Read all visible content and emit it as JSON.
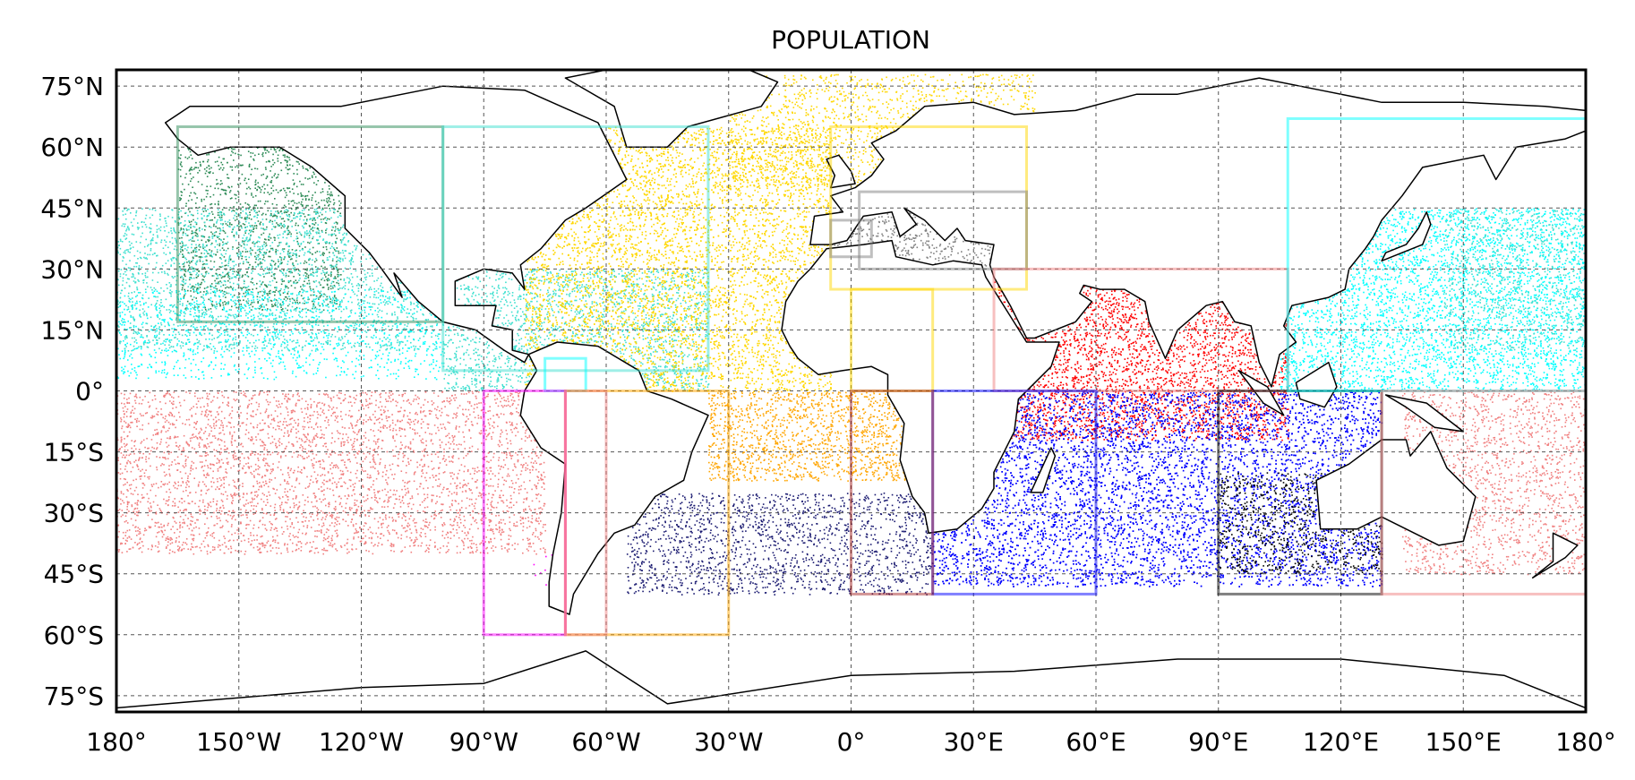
{
  "title": "POPULATION",
  "x_ticks": [
    {
      "lon": -180,
      "label": "180°"
    },
    {
      "lon": -150,
      "label": "150°W"
    },
    {
      "lon": -120,
      "label": "120°W"
    },
    {
      "lon": -90,
      "label": "90°W"
    },
    {
      "lon": -60,
      "label": "60°W"
    },
    {
      "lon": -30,
      "label": "30°W"
    },
    {
      "lon": 0,
      "label": "0°"
    },
    {
      "lon": 30,
      "label": "30°E"
    },
    {
      "lon": 60,
      "label": "60°E"
    },
    {
      "lon": 90,
      "label": "90°E"
    },
    {
      "lon": 120,
      "label": "120°E"
    },
    {
      "lon": 150,
      "label": "150°E"
    },
    {
      "lon": 180,
      "label": "180°"
    }
  ],
  "y_ticks": [
    {
      "lat": 75,
      "label": "75°N"
    },
    {
      "lat": 60,
      "label": "60°N"
    },
    {
      "lat": 45,
      "label": "45°N"
    },
    {
      "lat": 30,
      "label": "30°N"
    },
    {
      "lat": 15,
      "label": "15°N"
    },
    {
      "lat": 0,
      "label": "0°"
    },
    {
      "lat": -15,
      "label": "15°S"
    },
    {
      "lat": -30,
      "label": "30°S"
    },
    {
      "lat": -45,
      "label": "45°S"
    },
    {
      "lat": -60,
      "label": "60°S"
    },
    {
      "lat": -75,
      "label": "75°S"
    }
  ],
  "extent": {
    "lon": [
      -180,
      180
    ],
    "lat": [
      -79,
      79
    ]
  },
  "grid": true,
  "populations": [
    {
      "color": "#2e8b57",
      "lon": [
        -165,
        -125
      ],
      "lat": [
        20,
        60
      ],
      "density": 1.0
    },
    {
      "color": "#40e0d0",
      "lon": [
        -180,
        -100
      ],
      "lat": [
        10,
        45
      ],
      "density": 1.0
    },
    {
      "color": "#00ffff",
      "lon": [
        -180,
        -100
      ],
      "lat": [
        3,
        25
      ],
      "density": 0.6
    },
    {
      "color": "#40e0d0",
      "lon": [
        -100,
        -35
      ],
      "lat": [
        0,
        30
      ],
      "density": 1.2
    },
    {
      "color": "#ffd700",
      "lon": [
        -80,
        -5
      ],
      "lat": [
        0,
        65
      ],
      "density": 1.6
    },
    {
      "color": "#ffd700",
      "lon": [
        -30,
        45
      ],
      "lat": [
        50,
        78
      ],
      "density": 0.8
    },
    {
      "color": "#ffa500",
      "lon": [
        -35,
        15
      ],
      "lat": [
        -22,
        0
      ],
      "density": 1.4
    },
    {
      "color": "#808080",
      "lon": [
        -5,
        40
      ],
      "lat": [
        30,
        45
      ],
      "density": 1.0
    },
    {
      "color": "#f08080",
      "lon": [
        -180,
        -75
      ],
      "lat": [
        -40,
        0
      ],
      "density": 1.0
    },
    {
      "color": "#f08080",
      "lon": [
        135,
        180
      ],
      "lat": [
        -45,
        0
      ],
      "density": 0.9
    },
    {
      "color": "#ff0000",
      "lon": [
        35,
        107
      ],
      "lat": [
        -12,
        30
      ],
      "density": 1.5
    },
    {
      "color": "#0000ff",
      "lon": [
        20,
        130
      ],
      "lat": [
        -48,
        0
      ],
      "density": 2.2
    },
    {
      "color": "#000000",
      "lon": [
        90,
        130
      ],
      "lat": [
        -45,
        -20
      ],
      "density": 1.0
    },
    {
      "color": "#00ffff",
      "lon": [
        105,
        180
      ],
      "lat": [
        0,
        45
      ],
      "density": 1.3
    },
    {
      "color": "#40e0d0",
      "lon": [
        145,
        180
      ],
      "lat": [
        10,
        45
      ],
      "density": 0.7
    },
    {
      "color": "#191970",
      "lon": [
        -55,
        20
      ],
      "lat": [
        -50,
        -25
      ],
      "density": 1.0
    },
    {
      "color": "#ff00ff",
      "lon": [
        -78,
        -70
      ],
      "lat": [
        -48,
        -40
      ],
      "density": 0.2
    }
  ],
  "boxes": [
    {
      "color": "#2e8b57",
      "lon": [
        -165,
        -100
      ],
      "lat": [
        17,
        65
      ]
    },
    {
      "color": "#40e0d0",
      "lon": [
        -100,
        -35
      ],
      "lat": [
        5,
        65
      ]
    },
    {
      "color": "#00ffff",
      "lon": [
        -75,
        -65
      ],
      "lat": [
        0,
        8
      ]
    },
    {
      "color": "#ffd700",
      "lon": [
        -5,
        43
      ],
      "lat": [
        25,
        65
      ]
    },
    {
      "color": "#808080",
      "lon": [
        2,
        43
      ],
      "lat": [
        30,
        49
      ]
    },
    {
      "color": "#808080",
      "lon": [
        -5,
        5
      ],
      "lat": [
        33,
        42
      ]
    },
    {
      "color": "#ffd700",
      "lon": [
        0,
        20
      ],
      "lat": [
        0,
        25
      ]
    },
    {
      "color": "#ffa500",
      "lon": [
        -70,
        -30
      ],
      "lat": [
        -60,
        0
      ]
    },
    {
      "color": "#ff00ff",
      "lon": [
        -90,
        -70
      ],
      "lat": [
        -60,
        0
      ]
    },
    {
      "color": "#f08080",
      "lon": [
        -70,
        -60
      ],
      "lat": [
        -60,
        0
      ]
    },
    {
      "color": "#f08080",
      "lon": [
        35,
        107
      ],
      "lat": [
        0,
        30
      ]
    },
    {
      "color": "#0000ff",
      "lon": [
        20,
        60
      ],
      "lat": [
        -50,
        0
      ]
    },
    {
      "color": "#a52a2a",
      "lon": [
        0,
        20
      ],
      "lat": [
        -50,
        0
      ]
    },
    {
      "color": "#000000",
      "lon": [
        90,
        130
      ],
      "lat": [
        -50,
        0
      ]
    },
    {
      "color": "#00ffff",
      "lon": [
        107,
        180
      ],
      "lat": [
        0,
        67
      ]
    },
    {
      "color": "#f08080",
      "lon": [
        130,
        180
      ],
      "lat": [
        -50,
        0
      ]
    }
  ]
}
